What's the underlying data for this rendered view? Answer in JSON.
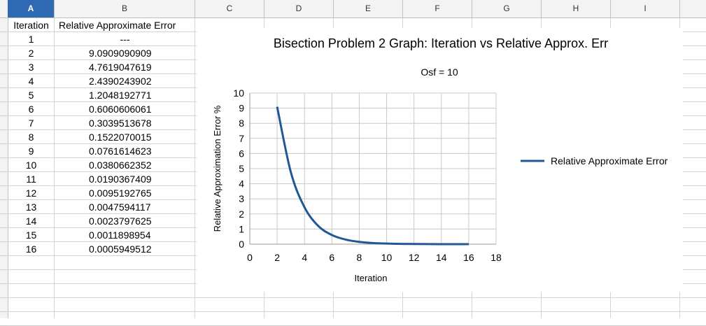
{
  "columns": [
    "A",
    "B",
    "C",
    "D",
    "E",
    "F",
    "G",
    "H",
    "I"
  ],
  "table": {
    "headers": [
      "Iteration",
      "Relative Approximate Error"
    ],
    "rows": [
      [
        "1",
        "---"
      ],
      [
        "2",
        "9.0909090909"
      ],
      [
        "3",
        "4.7619047619"
      ],
      [
        "4",
        "2.4390243902"
      ],
      [
        "5",
        "1.2048192771"
      ],
      [
        "6",
        "0.6060606061"
      ],
      [
        "7",
        "0.3039513678"
      ],
      [
        "8",
        "0.1522070015"
      ],
      [
        "9",
        "0.0761614623"
      ],
      [
        "10",
        "0.0380662352"
      ],
      [
        "11",
        "0.0190367409"
      ],
      [
        "12",
        "0.0095192765"
      ],
      [
        "13",
        "0.0047594117"
      ],
      [
        "14",
        "0.0023797625"
      ],
      [
        "15",
        "0.0011898954"
      ],
      [
        "16",
        "0.0005949512"
      ]
    ]
  },
  "chart_data": {
    "type": "line",
    "title": "Bisection Problem 2 Graph: Iteration vs Relative Approx. Err",
    "subtitle": "Osf = 10",
    "xlabel": "Iteration",
    "ylabel": "Relative Approximation Error %",
    "xlim": [
      0,
      18
    ],
    "ylim": [
      0,
      10
    ],
    "xticks": [
      "0",
      "2",
      "4",
      "6",
      "8",
      "10",
      "12",
      "14",
      "16",
      "18"
    ],
    "yticks": [
      "0",
      "1",
      "2",
      "3",
      "4",
      "5",
      "6",
      "7",
      "8",
      "9",
      "10"
    ],
    "grid": true,
    "legend_position": "right",
    "series": [
      {
        "name": "Relative Approximate Error",
        "color": "#1f5894",
        "x": [
          2,
          3,
          4,
          5,
          6,
          7,
          8,
          9,
          10,
          11,
          12,
          13,
          14,
          15,
          16
        ],
        "y": [
          9.0909090909,
          4.7619047619,
          2.4390243902,
          1.2048192771,
          0.6060606061,
          0.3039513678,
          0.1522070015,
          0.0761614623,
          0.0380662352,
          0.0190367409,
          0.0095192765,
          0.0047594117,
          0.0023797625,
          0.0011898954,
          0.0005949512
        ]
      }
    ]
  }
}
